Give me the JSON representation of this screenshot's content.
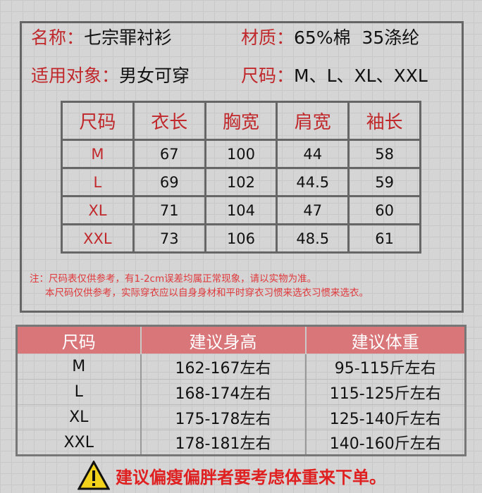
{
  "info": {
    "name_label": "名称：",
    "name_value": "七宗罪衬衫",
    "material_label": "材质：",
    "material_value": "65%棉  35涤纶",
    "target_label": "适用对象：",
    "target_value": "男女可穿",
    "size_label": "尺码：",
    "size_value": "M、L、XL、XXL"
  },
  "size_table": {
    "headers": [
      "尺码",
      "衣长",
      "胸宽",
      "肩宽",
      "袖长"
    ],
    "rows": [
      [
        "M",
        "67",
        "100",
        "44",
        "58"
      ],
      [
        "L",
        "69",
        "102",
        "44.5",
        "59"
      ],
      [
        "XL",
        "71",
        "104",
        "47",
        "60"
      ],
      [
        "XXL",
        "73",
        "106",
        "48.5",
        "61"
      ]
    ]
  },
  "notes": [
    "注：尺码表仅供参考，有1-2cm误差均属正常现象，请以实物为准。",
    "本尺码仅供参考，实际穿衣应以自身身材和平时穿衣习惯来选衣习惯来选衣。"
  ],
  "fit_table": {
    "headers": [
      "尺码",
      "建议身高",
      "建议体重"
    ],
    "rows": [
      [
        "M",
        "162-167左右",
        "95-115斤左右"
      ],
      [
        "L",
        "168-174左右",
        "115-125斤左右"
      ],
      [
        "XL",
        "175-178左右",
        "125-140斤左右"
      ],
      [
        "XXL",
        "178-181左右",
        "140-160斤左右"
      ]
    ]
  },
  "warning": {
    "icon": "warning-triangle-icon",
    "text": "建议偏瘦偏胖者要考虑体重来下单。"
  },
  "colors": {
    "accent_red": "#c0282b",
    "header_pink": "#d97679"
  }
}
